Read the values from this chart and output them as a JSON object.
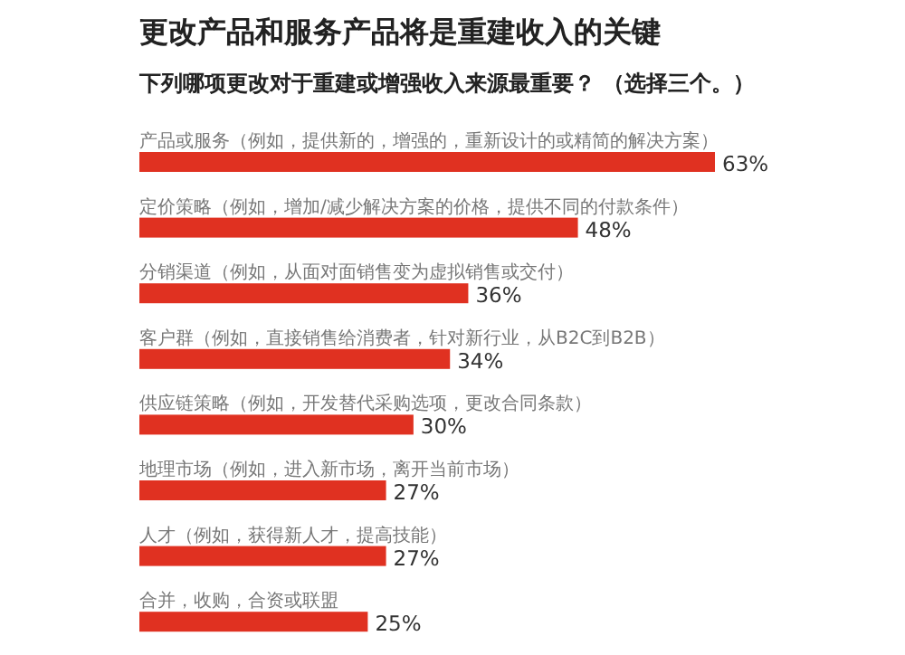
{
  "chart_data": {
    "type": "bar",
    "orientation": "horizontal",
    "title": "更改产品和服务产品将是重建收入的关键",
    "subtitle": "下列哪项更改对于重建或增强收入来源最重要？ （选择三个。）",
    "categories": [
      "产品或服务（例如，提供新的，增强的，重新设计的或精简的解决方案）",
      "定价策略（例如，增加/减少解决方案的价格，提供不同的付款条件）",
      "分销渠道（例如，从面对面销售变为虚拟销售或交付）",
      "客户群（例如，直接销售给消费者，针对新行业，从B2C到B2B）",
      "供应链策略（例如，开发替代采购选项，更改合同条款）",
      "地理市场（例如，进入新市场，离开当前市场）",
      "人才（例如，获得新人才，提高技能）",
      "合并，收购，合资或联盟"
    ],
    "values": [
      63,
      48,
      36,
      34,
      30,
      27,
      27,
      25
    ],
    "value_labels": [
      "63%",
      "48%",
      "36%",
      "34%",
      "30%",
      "27%",
      "27%",
      "25%"
    ],
    "color": "#e03121"
  }
}
